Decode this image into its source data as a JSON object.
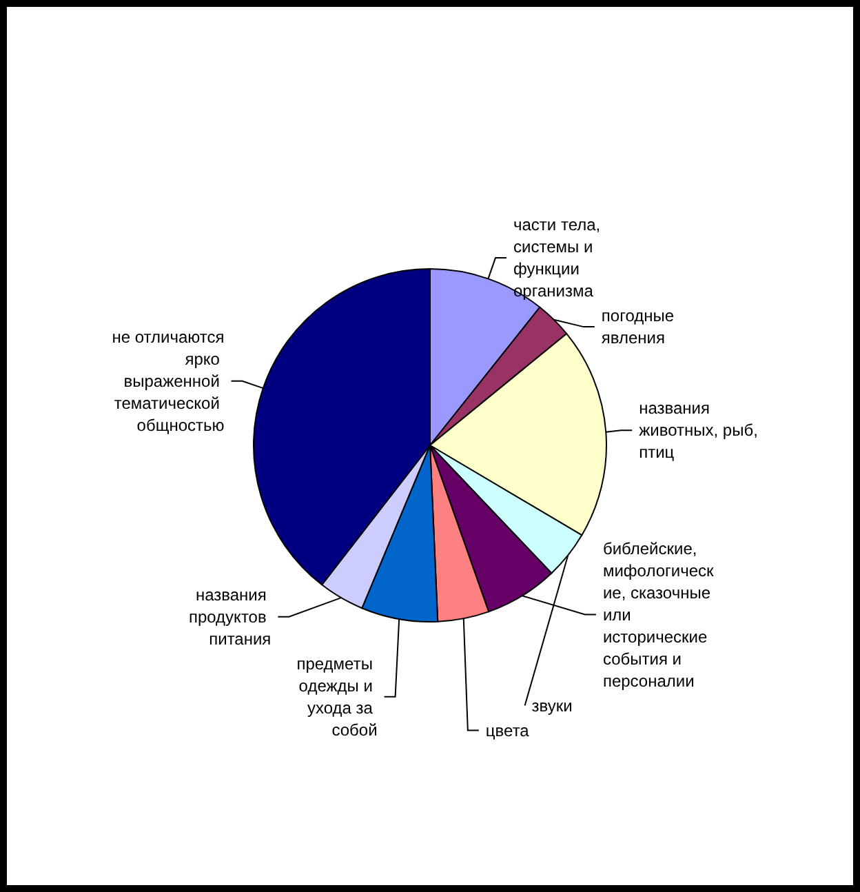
{
  "chart_data": {
    "type": "pie",
    "categories": [
      "части тела, системы и функции организма",
      "погодные явления",
      "названия животных, рыб, птиц",
      "звуки",
      "библейские, мифологические, сказочные или исторические события и персоналии",
      "цвета",
      "предметы одежды и ухода за собой",
      "названия продуктов питания",
      "не отличаются ярко выраженной тематической общностью"
    ],
    "values": [
      10.7,
      3.4,
      19.4,
      4.4,
      6.7,
      4.7,
      7.0,
      4.2,
      39.5
    ],
    "colors": [
      "#9999ff",
      "#993366",
      "#ffffcc",
      "#ccffff",
      "#660066",
      "#ff8080",
      "#0066cc",
      "#ccccff",
      "#000080"
    ]
  }
}
